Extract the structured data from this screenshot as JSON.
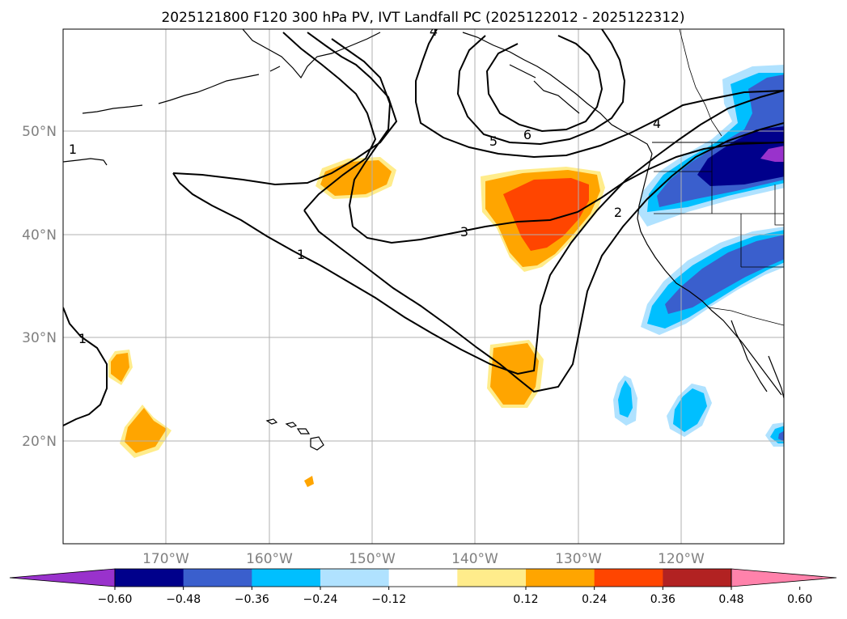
{
  "figure": {
    "title": "2025121800 F120 300 hPa PV, IVT Landfall PC (2025122012 - 2025122312)"
  },
  "axes": {
    "lat_labels": [
      "50°N",
      "40°N",
      "30°N",
      "20°N"
    ],
    "lon_labels": [
      "170°W",
      "160°W",
      "150°W",
      "140°W",
      "130°W",
      "120°W"
    ]
  },
  "contour_labels": [
    "1",
    "1",
    "1",
    "2",
    "3",
    "4",
    "4",
    "5",
    "6"
  ],
  "colorbar": {
    "ticks": [
      "−0.60",
      "−0.48",
      "−0.36",
      "−0.24",
      "−0.12",
      "0.12",
      "0.24",
      "0.36",
      "0.48",
      "0.60"
    ],
    "colors": [
      "#9932cc",
      "#00008b",
      "#3a5fcd",
      "#00bfff",
      "#b0e2ff",
      "#ffffff",
      "#ffec8b",
      "#ffa500",
      "#ff4500",
      "#b22222",
      "#ff82ab"
    ]
  },
  "colors": {
    "gridline": "#b0b0b0",
    "coast": "#000000",
    "contour": "#000000"
  }
}
